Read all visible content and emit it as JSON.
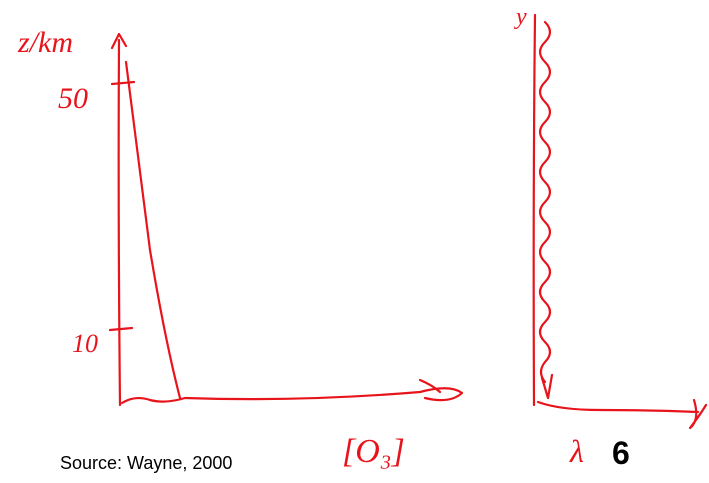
{
  "left_sketch": {
    "y_label": "z/km",
    "ticks": [
      "50",
      "10"
    ],
    "x_label": "[O₃]"
  },
  "right_sketch": {
    "y_label": "y",
    "x_label": "λ"
  },
  "footer": {
    "source": "Source: Wayne, 2000",
    "page_number": "6"
  }
}
